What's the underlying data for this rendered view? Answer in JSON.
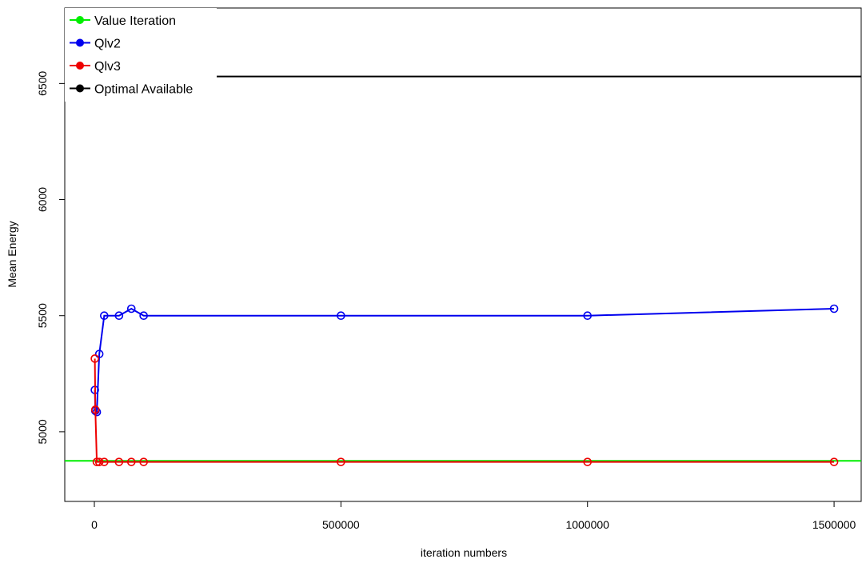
{
  "chart_data": {
    "type": "line",
    "title": "",
    "xlabel": "iteration numbers",
    "ylabel": "Mean Energy",
    "xlim": [
      -60000,
      1555000
    ],
    "ylim": [
      4700,
      6825
    ],
    "x_ticks": [
      0,
      500000,
      1000000,
      1500000
    ],
    "x_tick_labels": [
      "0",
      "500000",
      "1000000",
      "1500000"
    ],
    "y_ticks": [
      5000,
      5500,
      6000,
      6500
    ],
    "y_tick_labels": [
      "5000",
      "5500",
      "6000",
      "6500"
    ],
    "grid": false,
    "legend_position": "top-left",
    "legend": [
      {
        "label": "Value Iteration",
        "color": "#00ee00"
      },
      {
        "label": "Qlv2",
        "color": "#0000ee"
      },
      {
        "label": "Qlv3",
        "color": "#ee0000"
      },
      {
        "label": "Optimal Available",
        "color": "#000000"
      }
    ],
    "series": [
      {
        "name": "Value Iteration",
        "kind": "hline",
        "color": "#00ee00",
        "y": 4875
      },
      {
        "name": "Optimal Available",
        "kind": "hline",
        "color": "#000000",
        "y": 6530
      },
      {
        "name": "Qlv2",
        "kind": "line-points",
        "color": "#0000ee",
        "x": [
          1000,
          2000,
          5000,
          10000,
          20000,
          50000,
          75000,
          100000,
          500000,
          1000000,
          1500000
        ],
        "y": [
          5180,
          5090,
          5085,
          5335,
          5500,
          5500,
          5530,
          5500,
          5500,
          5500,
          5530
        ]
      },
      {
        "name": "Qlv3",
        "kind": "line-points",
        "color": "#ee0000",
        "x": [
          1000,
          2000,
          5000,
          10000,
          20000,
          50000,
          75000,
          100000,
          500000,
          1000000,
          1500000
        ],
        "y": [
          5315,
          5095,
          4870,
          4870,
          4870,
          4870,
          4870,
          4870,
          4870,
          4870,
          4870
        ]
      }
    ]
  }
}
